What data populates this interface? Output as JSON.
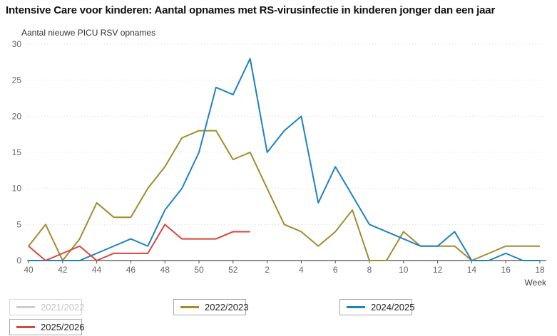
{
  "title": "Intensive Care voor kinderen: Aantal opnames met RS-virusinfectie in kinderen jonger dan een jaar",
  "chart_data": {
    "type": "line",
    "title": "Intensive Care voor kinderen: Aantal opnames met RS-virusinfectie in kinderen jonger dan een jaar",
    "y_axis_label": "Aantal nieuwe PICU RSV opnames",
    "x_axis_label": "Week",
    "ylim": [
      0,
      30
    ],
    "y_ticks": [
      0,
      5,
      10,
      15,
      20,
      25,
      30
    ],
    "grid": "horizontal-dotted",
    "legend_position": "bottom",
    "x_labels": [
      "40",
      "41",
      "42",
      "43",
      "44",
      "45",
      "46",
      "47",
      "48",
      "49",
      "50",
      "51",
      "52",
      "1",
      "2",
      "3",
      "4",
      "5",
      "6",
      "7",
      "8",
      "9",
      "10",
      "11",
      "12",
      "13",
      "14",
      "15",
      "16",
      "17",
      "18"
    ],
    "x_tick_shown_every": 2,
    "series": [
      {
        "name": "2021/2022",
        "color": "#c8c8c8",
        "visible": false,
        "values": []
      },
      {
        "name": "2022/2023",
        "color": "#a38b2e",
        "visible": true,
        "values": [
          2,
          5,
          0,
          3,
          8,
          6,
          6,
          10,
          13,
          17,
          18,
          18,
          14,
          15,
          10,
          5,
          4,
          2,
          4,
          7,
          0,
          0,
          4,
          2,
          2,
          2,
          0,
          1,
          2,
          2,
          2
        ]
      },
      {
        "name": "2024/2025",
        "color": "#1e82c5",
        "visible": true,
        "values": [
          0,
          0,
          0,
          0,
          1,
          2,
          3,
          2,
          7,
          10,
          15,
          24,
          23,
          28,
          15,
          18,
          20,
          8,
          13,
          9,
          5,
          4,
          3,
          2,
          2,
          4,
          0,
          0,
          1,
          0,
          0
        ]
      },
      {
        "name": "2025/2026",
        "color": "#d8453c",
        "visible": true,
        "values": [
          2,
          0,
          1,
          2,
          0,
          1,
          1,
          1,
          5,
          3,
          3,
          3,
          4,
          4
        ]
      }
    ]
  },
  "legend": {
    "items": [
      {
        "label": "2021/2022",
        "color": "#c8c8c8",
        "disabled": true
      },
      {
        "label": "2022/2023",
        "color": "#a38b2e",
        "disabled": false
      },
      {
        "label": "2024/2025",
        "color": "#1e82c5",
        "disabled": false
      },
      {
        "label": "2025/2026",
        "color": "#d8453c",
        "disabled": false
      }
    ]
  }
}
